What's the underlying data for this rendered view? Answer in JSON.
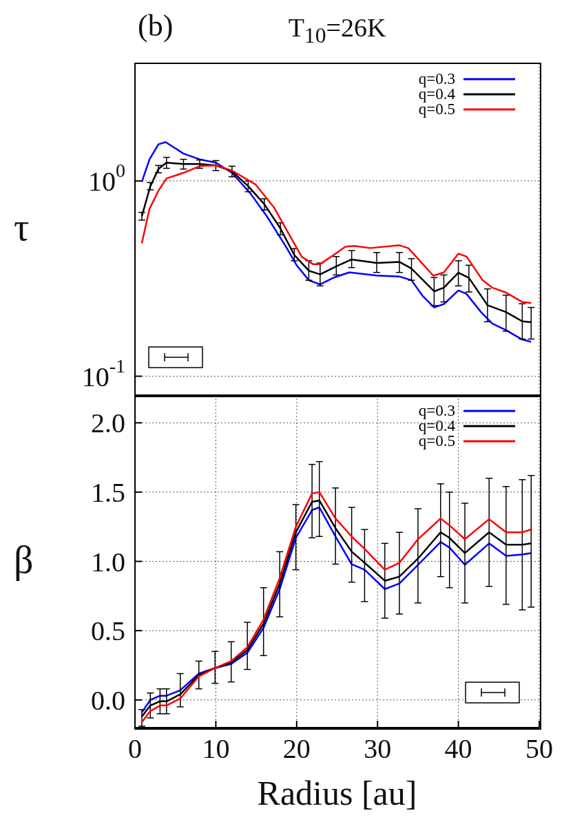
{
  "chart_data": [
    {
      "type": "line",
      "title": "T$_{10}$=26K",
      "annotations": [
        "(b)"
      ],
      "ylabel": "τ",
      "log": "y",
      "xlim": [
        0,
        50
      ],
      "xticks": [
        0,
        10,
        20,
        30,
        40,
        50
      ],
      "ylim": [
        0.08,
        4
      ],
      "yticks": [
        {
          "value": 0.1,
          "label": "10$^{-1}$"
        },
        {
          "value": 1,
          "label": "10$^{0}$"
        }
      ],
      "tick_labels": "y",
      "grid": true,
      "legend": "top right",
      "marker": "none",
      "line_style": "solid",
      "series": [
        {
          "name": "q=0.3",
          "color": "#0000ff",
          "x": [
            0.85,
            1.8,
            2.9,
            3.8,
            6,
            8,
            10,
            12,
            14.3,
            16.3,
            18.6,
            20,
            21.5,
            22.9,
            24.6,
            26.5,
            29.9,
            32.7,
            34.2,
            35.6,
            37,
            38.2,
            40,
            41,
            42.8,
            44.2,
            45.9,
            47.9,
            49
          ],
          "values": [
            0.99,
            1.29,
            1.54,
            1.58,
            1.38,
            1.29,
            1.24,
            1.1,
            0.86,
            0.66,
            0.466,
            0.37,
            0.31,
            0.295,
            0.32,
            0.34,
            0.328,
            0.324,
            0.31,
            0.257,
            0.225,
            0.234,
            0.275,
            0.264,
            0.213,
            0.186,
            0.172,
            0.154,
            0.15
          ]
        },
        {
          "name": "q=0.4",
          "color": "#000000",
          "x": [
            0.85,
            1.9,
            2.9,
            3.9,
            6,
            8,
            10,
            12,
            14,
            16,
            18,
            19.7,
            21.5,
            22.9,
            24.9,
            26.8,
            29.9,
            32.7,
            34.2,
            37,
            38.2,
            40,
            41.3,
            43.6,
            45.9,
            47.9,
            49
          ],
          "values": [
            0.66,
            0.94,
            1.15,
            1.24,
            1.22,
            1.22,
            1.2,
            1.12,
            0.94,
            0.76,
            0.57,
            0.418,
            0.347,
            0.332,
            0.365,
            0.396,
            0.38,
            0.385,
            0.356,
            0.272,
            0.284,
            0.339,
            0.319,
            0.231,
            0.213,
            0.191,
            0.189
          ],
          "errors": [
            [
              0.63,
              0.69
            ],
            [
              0.9,
              0.98
            ],
            [
              1.1,
              1.2
            ],
            [
              1.16,
              1.32
            ],
            [
              1.15,
              1.29
            ],
            [
              1.16,
              1.28
            ],
            [
              1.13,
              1.27
            ],
            [
              1.05,
              1.19
            ],
            [
              0.88,
              1.0
            ],
            [
              0.71,
              0.81
            ],
            [
              0.53,
              0.61
            ],
            [
              0.39,
              0.45
            ],
            [
              0.31,
              0.39
            ],
            [
              0.29,
              0.38
            ],
            [
              0.33,
              0.41
            ],
            [
              0.36,
              0.44
            ],
            [
              0.34,
              0.43
            ],
            [
              0.34,
              0.43
            ],
            [
              0.31,
              0.4
            ],
            [
              0.23,
              0.32
            ],
            [
              0.24,
              0.33
            ],
            [
              0.29,
              0.39
            ],
            [
              0.27,
              0.37
            ],
            [
              0.19,
              0.28
            ],
            [
              0.17,
              0.26
            ],
            [
              0.155,
              0.235
            ],
            [
              0.155,
              0.225
            ]
          ]
        },
        {
          "name": "q=0.5",
          "color": "#ff0000",
          "x": [
            0.85,
            1.8,
            2.9,
            3.9,
            6,
            8,
            10,
            12,
            14.9,
            17.2,
            19.2,
            20.6,
            22,
            22.9,
            24.3,
            26,
            27.1,
            29.1,
            32.7,
            33.8,
            35.6,
            36.9,
            38.2,
            40,
            41,
            43,
            44.2,
            45.9,
            47.9,
            49
          ],
          "values": [
            0.48,
            0.72,
            0.89,
            1.03,
            1.1,
            1.19,
            1.2,
            1.13,
            0.96,
            0.73,
            0.52,
            0.41,
            0.375,
            0.375,
            0.41,
            0.46,
            0.465,
            0.453,
            0.468,
            0.453,
            0.375,
            0.327,
            0.34,
            0.424,
            0.41,
            0.31,
            0.284,
            0.268,
            0.24,
            0.237
          ]
        }
      ]
    },
    {
      "type": "line",
      "xlabel": "Radius [au]",
      "ylabel": "β",
      "xlim": [
        0,
        50
      ],
      "xticks": [
        0,
        10,
        20,
        30,
        40,
        50
      ],
      "ylim": [
        -0.2,
        2.2
      ],
      "yticks": [
        {
          "value": 0,
          "label": "0.0"
        },
        {
          "value": 0.5,
          "label": "0.5"
        },
        {
          "value": 1,
          "label": "1.0"
        },
        {
          "value": 1.5,
          "label": "1.5"
        },
        {
          "value": 2,
          "label": "2.0"
        }
      ],
      "grid": true,
      "legend": "top right",
      "marker": "none",
      "line_style": "solid",
      "series": [
        {
          "name": "q=0.3",
          "color": "#0000ff",
          "x": [
            0.85,
            1.9,
            3.1,
            3.9,
            5.6,
            7.9,
            9.9,
            11.9,
            13.9,
            15.9,
            17.9,
            19.9,
            21.9,
            22.8,
            24.8,
            26.8,
            28.4,
            30.9,
            32.7,
            35,
            37.8,
            38.9,
            40.8,
            43.8,
            45.9,
            47.9,
            49
          ],
          "values": [
            -0.09,
            0.0,
            0.03,
            0.03,
            0.07,
            0.19,
            0.23,
            0.26,
            0.34,
            0.52,
            0.8,
            1.17,
            1.37,
            1.39,
            1.18,
            0.98,
            0.94,
            0.8,
            0.84,
            0.975,
            1.14,
            1.1,
            0.975,
            1.13,
            1.04,
            1.05,
            1.06
          ]
        },
        {
          "name": "q=0.4",
          "color": "#000000",
          "x": [
            0.85,
            1.9,
            3.1,
            3.9,
            5.6,
            7.9,
            9.9,
            11.9,
            13.9,
            15.9,
            17.9,
            19.9,
            21.9,
            22.8,
            24.8,
            26.8,
            28.4,
            30.9,
            32.7,
            35,
            37.8,
            38.9,
            40.8,
            43.8,
            45.9,
            47.9,
            49
          ],
          "values": [
            -0.12,
            -0.04,
            -0.01,
            -0.01,
            0.04,
            0.18,
            0.23,
            0.27,
            0.36,
            0.55,
            0.84,
            1.21,
            1.43,
            1.44,
            1.24,
            1.07,
            0.99,
            0.86,
            0.89,
            1.02,
            1.21,
            1.17,
            1.06,
            1.21,
            1.12,
            1.12,
            1.13
          ],
          "errors": [
            [
              -0.19,
              -0.07
            ],
            [
              -0.13,
              0.05
            ],
            [
              -0.1,
              0.08
            ],
            [
              -0.1,
              0.08
            ],
            [
              -0.05,
              0.19
            ],
            [
              0.08,
              0.28
            ],
            [
              0.12,
              0.35
            ],
            [
              0.13,
              0.42
            ],
            [
              0.22,
              0.56
            ],
            [
              0.32,
              0.81
            ],
            [
              0.6,
              1.07
            ],
            [
              0.94,
              1.41
            ],
            [
              1.17,
              1.7
            ],
            [
              1.18,
              1.72
            ],
            [
              0.98,
              1.53
            ],
            [
              0.85,
              1.39
            ],
            [
              0.71,
              1.23
            ],
            [
              0.59,
              1.13
            ],
            [
              0.62,
              1.21
            ],
            [
              0.7,
              1.38
            ],
            [
              0.89,
              1.56
            ],
            [
              0.81,
              1.5
            ],
            [
              0.7,
              1.42
            ],
            [
              0.82,
              1.6
            ],
            [
              0.69,
              1.54
            ],
            [
              0.65,
              1.59
            ],
            [
              0.67,
              1.62
            ]
          ]
        },
        {
          "name": "q=0.5",
          "color": "#ff0000",
          "x": [
            0.85,
            1.9,
            3.1,
            3.9,
            5.6,
            7.9,
            9.9,
            11.9,
            13.9,
            15.9,
            17.9,
            19.9,
            21.9,
            22.8,
            24.8,
            26.8,
            28.4,
            30.9,
            32.7,
            35,
            37.8,
            38.9,
            40.8,
            43.8,
            45.9,
            47.9,
            49
          ],
          "values": [
            -0.16,
            -0.08,
            -0.04,
            -0.04,
            0.01,
            0.17,
            0.23,
            0.28,
            0.38,
            0.58,
            0.88,
            1.25,
            1.49,
            1.5,
            1.31,
            1.18,
            1.09,
            0.94,
            0.99,
            1.16,
            1.31,
            1.26,
            1.16,
            1.305,
            1.21,
            1.21,
            1.23
          ]
        }
      ]
    }
  ]
}
